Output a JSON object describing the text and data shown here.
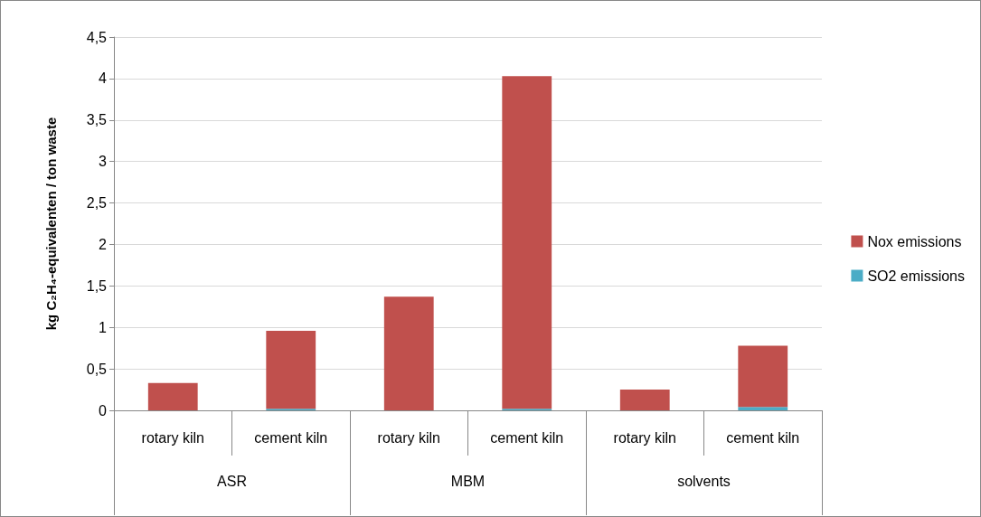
{
  "chart_data": {
    "type": "bar",
    "stacked": true,
    "ylabel": "kg C₂H₄-equivalenten / ton waste",
    "categories": [
      "rotary kiln",
      "cement kiln",
      "rotary kiln",
      "cement kiln",
      "rotary kiln",
      "cement kiln"
    ],
    "annotations": [
      "ASR",
      "MBM",
      "solvents"
    ],
    "series": [
      {
        "name": "SO2 emissions",
        "color": "#4bacc6",
        "values": [
          0,
          0.02,
          0,
          0.02,
          0,
          0.04
        ]
      },
      {
        "name": "Nox emissions",
        "color": "#c0504d",
        "values": [
          0.33,
          0.94,
          1.37,
          4.01,
          0.25,
          0.74
        ]
      }
    ],
    "ylim": [
      0,
      4.5
    ],
    "yticks": [
      0,
      {
        "value": 0.5,
        "label": "0,5"
      },
      1,
      {
        "value": 1.5,
        "label": "1,5"
      },
      2,
      {
        "value": 2.5,
        "label": "2,5"
      },
      3,
      {
        "value": 3.5,
        "label": "3,5"
      },
      4,
      {
        "value": 4.5,
        "label": "4,5"
      }
    ],
    "grid": "y",
    "legend": "right"
  }
}
